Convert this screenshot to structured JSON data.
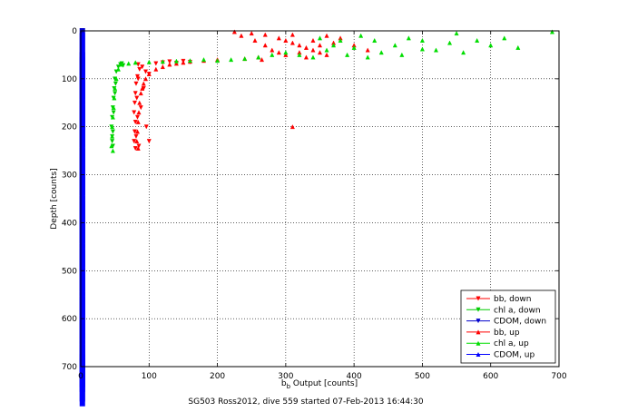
{
  "chart_data": {
    "type": "scatter",
    "title": "",
    "xlabel_main": "b",
    "xlabel_sub": "b",
    "xlabel_rest": " Output [counts]",
    "ylabel": "Depth [counts]",
    "caption": "SG503 Ross2012, dive 559 started 07-Feb-2013 16:44:30",
    "xlim": [
      0,
      700
    ],
    "ylim": [
      0,
      700
    ],
    "y_reversed": true,
    "grid": true,
    "legend_position": "bottom-right",
    "xticks": [
      "0",
      "100",
      "200",
      "300",
      "400",
      "500",
      "600",
      "700"
    ],
    "yticks": [
      "0",
      "100",
      "200",
      "300",
      "400",
      "500",
      "600",
      "700"
    ],
    "series": [
      {
        "name": "bb, down",
        "color": "#ff0000",
        "marker": "triangle-down",
        "points": [
          [
            84,
            70
          ],
          [
            86,
            80
          ],
          [
            83,
            95
          ],
          [
            81,
            110
          ],
          [
            80,
            130
          ],
          [
            79,
            150
          ],
          [
            78,
            170
          ],
          [
            80,
            190
          ],
          [
            79,
            210
          ],
          [
            78,
            230
          ],
          [
            80,
            245
          ],
          [
            90,
            75
          ],
          [
            95,
            85
          ],
          [
            100,
            90
          ],
          [
            110,
            68
          ],
          [
            120,
            66
          ],
          [
            130,
            64
          ],
          [
            150,
            63
          ],
          [
            160,
            65
          ],
          [
            140,
            67
          ],
          [
            84,
            100
          ],
          [
            82,
            140
          ],
          [
            83,
            180
          ],
          [
            81,
            220
          ],
          [
            85,
            240
          ],
          [
            92,
            120
          ],
          [
            88,
            160
          ],
          [
            96,
            200
          ],
          [
            100,
            230
          ]
        ]
      },
      {
        "name": "chl a, down",
        "color": "#00cc00",
        "marker": "triangle-down",
        "points": [
          [
            55,
            75
          ],
          [
            52,
            85
          ],
          [
            50,
            100
          ],
          [
            49,
            120
          ],
          [
            48,
            140
          ],
          [
            47,
            160
          ],
          [
            46,
            180
          ],
          [
            45,
            200
          ],
          [
            46,
            220
          ],
          [
            47,
            240
          ],
          [
            58,
            70
          ],
          [
            60,
            68
          ],
          [
            62,
            72
          ],
          [
            51,
            110
          ],
          [
            50,
            130
          ],
          [
            48,
            170
          ],
          [
            47,
            210
          ],
          [
            46,
            230
          ]
        ]
      },
      {
        "name": "CDOM, down",
        "color": "#0000cc",
        "marker": "triangle-down",
        "points": [
          [
            1,
            0
          ],
          [
            1,
            50
          ],
          [
            1,
            100
          ],
          [
            1,
            150
          ],
          [
            1,
            200
          ],
          [
            1,
            250
          ],
          [
            1,
            300
          ],
          [
            1,
            350
          ],
          [
            1,
            400
          ],
          [
            1,
            450
          ],
          [
            1,
            500
          ],
          [
            1,
            550
          ],
          [
            1,
            600
          ],
          [
            1,
            650
          ],
          [
            1,
            680
          ]
        ]
      },
      {
        "name": "bb, up",
        "color": "#ff0000",
        "marker": "triangle-up",
        "points": [
          [
            225,
            2
          ],
          [
            250,
            5
          ],
          [
            270,
            8
          ],
          [
            290,
            15
          ],
          [
            300,
            20
          ],
          [
            310,
            25
          ],
          [
            320,
            30
          ],
          [
            330,
            35
          ],
          [
            340,
            40
          ],
          [
            350,
            45
          ],
          [
            360,
            50
          ],
          [
            280,
            40
          ],
          [
            260,
            55
          ],
          [
            240,
            58
          ],
          [
            300,
            50
          ],
          [
            320,
            45
          ],
          [
            340,
            20
          ],
          [
            360,
            10
          ],
          [
            380,
            15
          ],
          [
            400,
            30
          ],
          [
            420,
            40
          ],
          [
            200,
            60
          ],
          [
            180,
            62
          ],
          [
            160,
            64
          ],
          [
            150,
            66
          ],
          [
            140,
            68
          ],
          [
            130,
            70
          ],
          [
            120,
            75
          ],
          [
            110,
            80
          ],
          [
            100,
            90
          ],
          [
            95,
            100
          ],
          [
            92,
            110
          ],
          [
            90,
            120
          ],
          [
            88,
            130
          ],
          [
            86,
            150
          ],
          [
            85,
            170
          ],
          [
            84,
            190
          ],
          [
            83,
            210
          ],
          [
            82,
            230
          ],
          [
            84,
            245
          ],
          [
            310,
            200
          ],
          [
            330,
            55
          ],
          [
            270,
            30
          ],
          [
            255,
            20
          ],
          [
            235,
            10
          ],
          [
            310,
            8
          ],
          [
            350,
            30
          ],
          [
            370,
            25
          ],
          [
            290,
            45
          ],
          [
            265,
            60
          ]
        ]
      },
      {
        "name": "chl a, up",
        "color": "#00dd00",
        "marker": "triangle-up",
        "points": [
          [
            690,
            2
          ],
          [
            640,
            35
          ],
          [
            600,
            30
          ],
          [
            560,
            45
          ],
          [
            540,
            25
          ],
          [
            520,
            40
          ],
          [
            500,
            38
          ],
          [
            480,
            15
          ],
          [
            460,
            30
          ],
          [
            440,
            45
          ],
          [
            420,
            55
          ],
          [
            400,
            35
          ],
          [
            380,
            20
          ],
          [
            360,
            40
          ],
          [
            340,
            55
          ],
          [
            320,
            50
          ],
          [
            300,
            45
          ],
          [
            280,
            50
          ],
          [
            260,
            55
          ],
          [
            240,
            58
          ],
          [
            220,
            60
          ],
          [
            200,
            62
          ],
          [
            180,
            60
          ],
          [
            160,
            62
          ],
          [
            140,
            63
          ],
          [
            120,
            64
          ],
          [
            100,
            65
          ],
          [
            80,
            66
          ],
          [
            70,
            68
          ],
          [
            60,
            70
          ],
          [
            55,
            80
          ],
          [
            52,
            100
          ],
          [
            50,
            120
          ],
          [
            49,
            140
          ],
          [
            48,
            160
          ],
          [
            47,
            180
          ],
          [
            46,
            200
          ],
          [
            46,
            220
          ],
          [
            45,
            240
          ],
          [
            47,
            250
          ],
          [
            580,
            20
          ],
          [
            620,
            15
          ],
          [
            550,
            5
          ],
          [
            500,
            20
          ],
          [
            470,
            50
          ],
          [
            430,
            20
          ],
          [
            410,
            10
          ],
          [
            390,
            50
          ],
          [
            370,
            30
          ],
          [
            350,
            15
          ]
        ]
      },
      {
        "name": "CDOM, up",
        "color": "#0000ff",
        "marker": "triangle-up",
        "points": [
          [
            1,
            10
          ],
          [
            1,
            60
          ],
          [
            1,
            110
          ],
          [
            1,
            160
          ],
          [
            1,
            210
          ],
          [
            1,
            260
          ],
          [
            1,
            310
          ],
          [
            1,
            360
          ],
          [
            1,
            410
          ],
          [
            1,
            460
          ],
          [
            1,
            510
          ],
          [
            1,
            560
          ],
          [
            1,
            610
          ],
          [
            1,
            660
          ],
          [
            1,
            690
          ]
        ]
      }
    ]
  }
}
